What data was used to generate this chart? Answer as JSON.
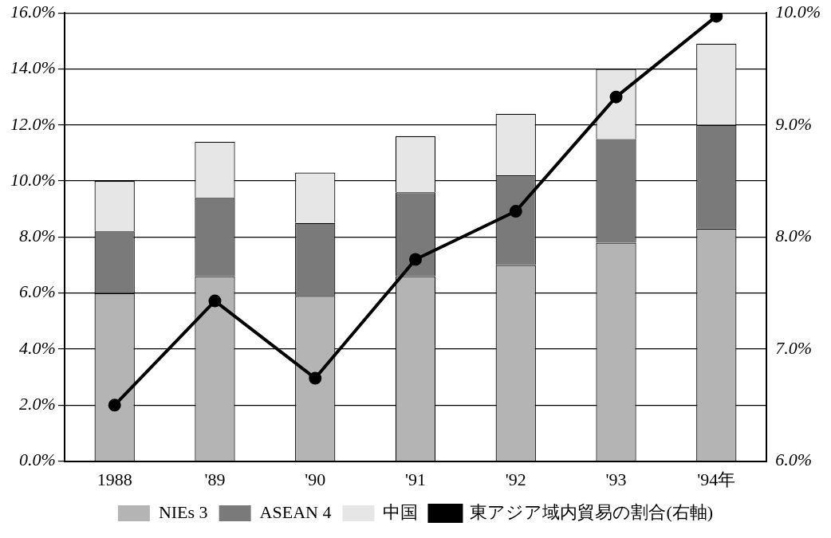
{
  "chart_data": {
    "type": "bar",
    "stacked": true,
    "categories": [
      "1988",
      "'89",
      "'90",
      "'91",
      "'92",
      "'93",
      "'94年"
    ],
    "series": [
      {
        "name": "NIEs 3",
        "color": "#b4b4b4",
        "values": [
          6.0,
          6.6,
          5.9,
          6.6,
          7.0,
          7.8,
          8.3
        ]
      },
      {
        "name": "ASEAN 4",
        "color": "#7a7a7a",
        "values": [
          2.2,
          2.8,
          2.6,
          3.0,
          3.2,
          3.7,
          3.7
        ]
      },
      {
        "name": "中国",
        "color": "#e6e6e6",
        "values": [
          1.8,
          2.0,
          1.8,
          2.0,
          2.2,
          2.5,
          2.9
        ]
      },
      {
        "name": "東アジア域内貿易の割合(右軸)",
        "type": "line",
        "axis": "y2",
        "color": "#000000",
        "values": [
          6.5,
          7.43,
          6.74,
          7.8,
          8.23,
          9.25,
          9.97
        ]
      }
    ],
    "ylim": [
      0,
      16
    ],
    "yticks": [
      {
        "value": 0,
        "label": "0.0%"
      },
      {
        "value": 2,
        "label": "2.0%"
      },
      {
        "value": 4,
        "label": "4.0%"
      },
      {
        "value": 6,
        "label": "6.0%"
      },
      {
        "value": 8,
        "label": "8.0%"
      },
      {
        "value": 10,
        "label": "10.0%"
      },
      {
        "value": 12,
        "label": "12.0%"
      },
      {
        "value": 14,
        "label": "14.0%"
      },
      {
        "value": 16,
        "label": "16.0%"
      }
    ],
    "y2lim": [
      6,
      10
    ],
    "y2ticks": [
      {
        "value": 6,
        "label": "6.0%"
      },
      {
        "value": 7,
        "label": "7.0%"
      },
      {
        "value": 8,
        "label": "8.0%"
      },
      {
        "value": 9,
        "label": "9.0%"
      },
      {
        "value": 10,
        "label": "10.0%"
      }
    ],
    "grid": "y",
    "legend": "bottom",
    "marker": "circle"
  }
}
